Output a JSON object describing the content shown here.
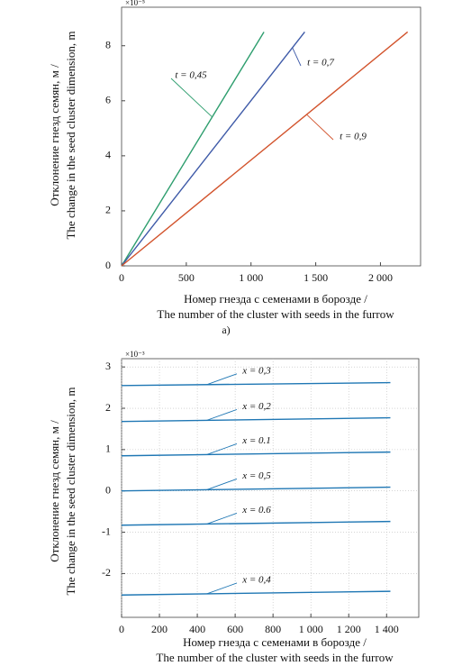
{
  "chart_data": [
    {
      "type": "line",
      "exponent": "×10⁻⁵",
      "xlabel": [
        "Номер гнезда с семенами в борозде /",
        "The number of the cluster with seeds in the furrow"
      ],
      "ylabel": [
        "Отклонение гнезд семян, м /",
        "The change in the seed cluster dimension, m"
      ],
      "caption": "a)",
      "xlim": [
        0,
        2310
      ],
      "ylim": [
        0,
        9.4
      ],
      "xticks": [
        0,
        500,
        {
          "value": 1000,
          "label": "1 000"
        },
        {
          "value": 1500,
          "label": "1 500"
        },
        {
          "value": 2000,
          "label": "2 000"
        }
      ],
      "yticks": [
        0,
        2,
        4,
        6,
        8
      ],
      "grid": false,
      "series": [
        {
          "name": "t = 0,45",
          "color": "#2e9e6e",
          "x": [
            0,
            1100
          ],
          "values": [
            0,
            8.5
          ]
        },
        {
          "name": "t = 0,7",
          "color": "#3e5aa8",
          "x": [
            0,
            1415
          ],
          "values": [
            0,
            8.5
          ]
        },
        {
          "name": "t = 0,9",
          "color": "#d2532c",
          "x": [
            0,
            2210
          ],
          "values": [
            0,
            8.5
          ]
        }
      ]
    },
    {
      "type": "line",
      "exponent": "×10⁻³",
      "xlabel": [
        "Номер гнезда с семенами в борозде /",
        "The number of the cluster with seeds in the furrow"
      ],
      "ylabel": [
        "Отклонение гнезд семян, м /",
        "The change in the seed cluster dimension, m"
      ],
      "xlim": [
        0,
        1570
      ],
      "ylim": [
        -3.06,
        3.2
      ],
      "xticks": [
        0,
        200,
        400,
        600,
        800,
        {
          "value": 1000,
          "label": "1 000"
        },
        {
          "value": 1200,
          "label": "1 200"
        },
        {
          "value": 1400,
          "label": "1 400"
        }
      ],
      "yticks": [
        -2,
        -1,
        0,
        1,
        2,
        3
      ],
      "grid": true,
      "series": [
        {
          "name": "x = 0,3",
          "color": "#1f77b4",
          "x": [
            0,
            1420
          ],
          "values": [
            2.55,
            2.62
          ]
        },
        {
          "name": "x = 0,2",
          "color": "#1f77b4",
          "x": [
            0,
            1420
          ],
          "values": [
            1.68,
            1.77
          ]
        },
        {
          "name": "x = 0.1",
          "color": "#1f77b4",
          "x": [
            0,
            1420
          ],
          "values": [
            0.85,
            0.94
          ]
        },
        {
          "name": "x = 0,5",
          "color": "#1f77b4",
          "x": [
            0,
            1420
          ],
          "values": [
            0,
            0.09
          ]
        },
        {
          "name": "x = 0.6",
          "color": "#1f77b4",
          "x": [
            0,
            1420
          ],
          "values": [
            -0.83,
            -0.74
          ]
        },
        {
          "name": "x = 0,4",
          "color": "#1f77b4",
          "x": [
            0,
            1420
          ],
          "values": [
            -2.52,
            -2.43
          ]
        }
      ]
    }
  ]
}
